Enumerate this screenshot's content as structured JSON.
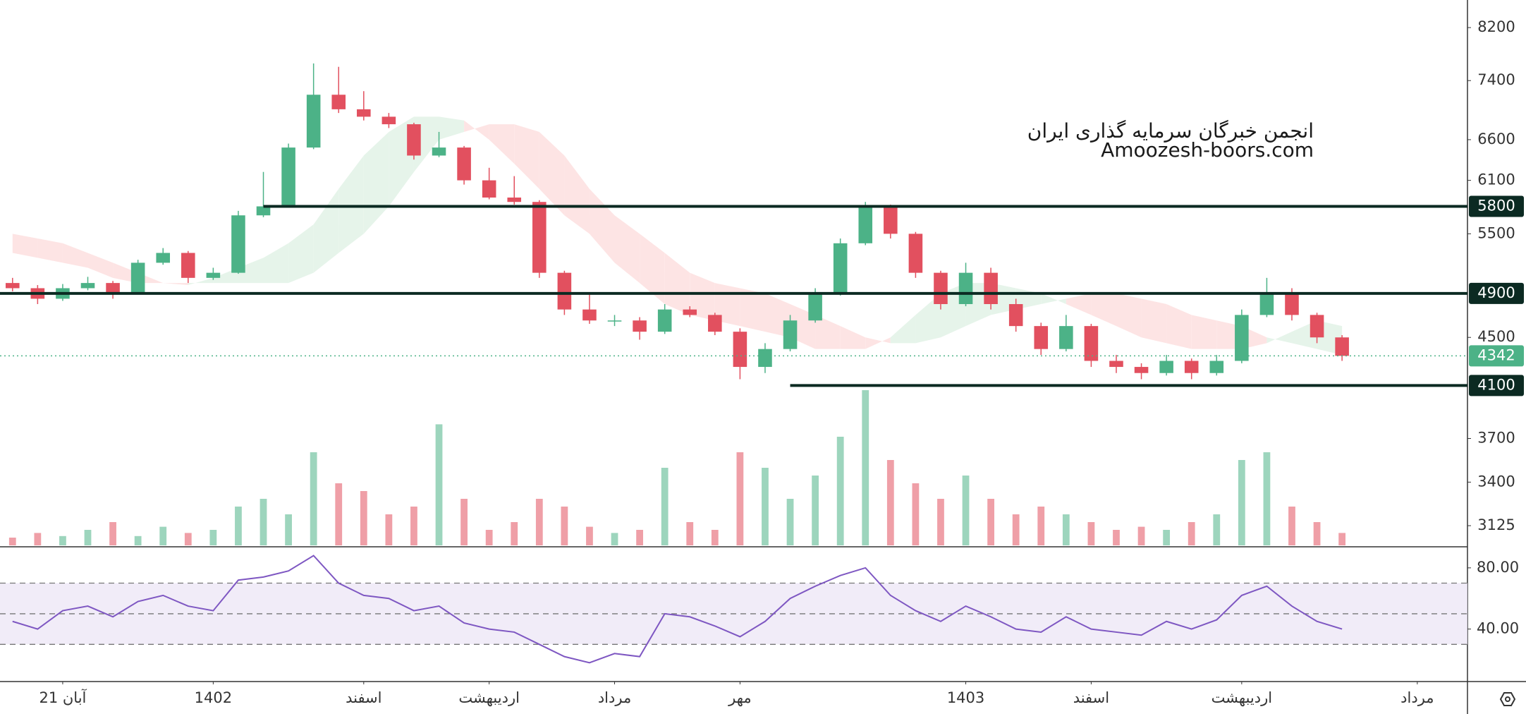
{
  "chart_data": {
    "type": "candlestick",
    "log_scale": true,
    "watermark": [
      "انجمن خبرگان سرمایه گذاری ایران",
      "Amoozesh-boors.com"
    ],
    "ylim": [
      3008,
      8650
    ],
    "yticks": [
      3125,
      3400,
      3700,
      4500,
      5500,
      6100,
      6600,
      7400,
      8200
    ],
    "xlim": [
      -0.5,
      58
    ],
    "xticks": [
      {
        "value": 2,
        "label": "21 آبان"
      },
      {
        "value": 8,
        "label": "1402"
      },
      {
        "value": 14,
        "label": "اسفند"
      },
      {
        "value": 19,
        "label": "اردیبهشت"
      },
      {
        "value": 24,
        "label": "مرداد"
      },
      {
        "value": 29,
        "label": "مهر"
      },
      {
        "value": 38,
        "label": "1403"
      },
      {
        "value": 43,
        "label": "اسفند"
      },
      {
        "value": 49,
        "label": "اردیبهشت"
      },
      {
        "value": 56,
        "label": "مرداد"
      }
    ],
    "up_color": "#4cb287",
    "down_color": "#e2505f",
    "open": [
      5000,
      4950,
      4850,
      4950,
      5000,
      4900,
      5200,
      5300,
      5050,
      5100,
      5700,
      5800,
      6500,
      7200,
      7000,
      6900,
      6800,
      6400,
      6500,
      6100,
      5900,
      5850,
      5100,
      4750,
      4650,
      4650,
      4550,
      4750,
      4700,
      4550,
      4250,
      4400,
      4650,
      4900,
      5400,
      5800,
      5500,
      5100,
      4800,
      5100,
      4800,
      4600,
      4400,
      4600,
      4300,
      4250,
      4200,
      4300,
      4200,
      4300,
      4700,
      4900,
      4700,
      4500
    ],
    "high": [
      5050,
      4980,
      4990,
      5060,
      5020,
      5230,
      5350,
      5320,
      5150,
      5750,
      6200,
      6550,
      7650,
      7600,
      7250,
      6950,
      6820,
      6700,
      6520,
      6250,
      6150,
      5870,
      5120,
      4900,
      4700,
      4680,
      4800,
      4780,
      4720,
      4580,
      4450,
      4700,
      4950,
      5450,
      5850,
      5820,
      5520,
      5120,
      5200,
      5150,
      4850,
      4630,
      4700,
      4620,
      4350,
      4280,
      4350,
      4320,
      4350,
      4750,
      5050,
      4950,
      4720,
      4520
    ],
    "low": [
      4920,
      4800,
      4830,
      4930,
      4850,
      4890,
      5180,
      5000,
      5030,
      5090,
      5680,
      5790,
      6480,
      6950,
      6850,
      6750,
      6350,
      6380,
      6050,
      5880,
      5820,
      5050,
      4700,
      4620,
      4600,
      4480,
      4530,
      4680,
      4520,
      4150,
      4200,
      4380,
      4630,
      4880,
      5380,
      5450,
      5050,
      4750,
      4780,
      4750,
      4550,
      4350,
      4380,
      4250,
      4200,
      4150,
      4180,
      4150,
      4180,
      4280,
      4680,
      4650,
      4450,
      4300
    ],
    "close": [
      4950,
      4850,
      4950,
      5000,
      4900,
      5200,
      5300,
      5050,
      5100,
      5700,
      5800,
      6500,
      7200,
      7000,
      6900,
      6800,
      6400,
      6500,
      6100,
      5900,
      5850,
      5100,
      4750,
      4650,
      4650,
      4550,
      4750,
      4700,
      4550,
      4250,
      4400,
      4650,
      4900,
      5400,
      5800,
      5500,
      5100,
      4800,
      5100,
      4800,
      4600,
      4400,
      4600,
      4300,
      4250,
      4200,
      4300,
      4200,
      4300,
      4700,
      4900,
      4700,
      4500,
      4342
    ],
    "volume": {
      "vlim": [
        0,
        100
      ],
      "values": [
        5,
        8,
        6,
        10,
        15,
        6,
        12,
        8,
        10,
        25,
        30,
        20,
        60,
        40,
        35,
        20,
        25,
        78,
        30,
        10,
        15,
        30,
        25,
        12,
        8,
        10,
        50,
        15,
        10,
        60,
        50,
        30,
        45,
        70,
        100,
        55,
        40,
        30,
        45,
        30,
        20,
        25,
        20,
        15,
        10,
        12,
        10,
        15,
        20,
        55,
        60,
        25,
        15,
        8
      ]
    },
    "cloud": {
      "up_color": "#e6f4ea",
      "down_color": "#fde4e4",
      "span_a": [
        5300,
        5250,
        5200,
        5150,
        5050,
        5000,
        5000,
        4980,
        5050,
        5150,
        5250,
        5400,
        5600,
        6000,
        6400,
        6700,
        6900,
        6900,
        6850,
        6600,
        6300,
        6000,
        5700,
        5500,
        5200,
        5000,
        4800,
        4700,
        4650,
        4600,
        4550,
        4500,
        4400,
        4400,
        4400,
        4500,
        4700,
        4900,
        5000,
        5000,
        4950,
        4900,
        4800,
        4700,
        4600,
        4500,
        4450,
        4400,
        4400,
        4400,
        4450,
        4550,
        4650,
        4600
      ],
      "span_b": [
        5500,
        5450,
        5400,
        5300,
        5200,
        5100,
        5000,
        5000,
        5000,
        5000,
        5000,
        5000,
        5100,
        5300,
        5500,
        5800,
        6200,
        6600,
        6700,
        6800,
        6800,
        6700,
        6400,
        6000,
        5700,
        5500,
        5300,
        5100,
        5000,
        4950,
        4900,
        4800,
        4700,
        4600,
        4500,
        4450,
        4450,
        4500,
        4600,
        4700,
        4750,
        4800,
        4850,
        4900,
        4900,
        4850,
        4800,
        4700,
        4650,
        4600,
        4500,
        4450,
        4400,
        4350
      ]
    },
    "levels": [
      {
        "value": 5800,
        "from": 10
      },
      {
        "value": 4900,
        "from": -0.5
      },
      {
        "value": 4100,
        "from": 31
      }
    ],
    "level_color": "#0b2a22",
    "last_price": 4342,
    "last_color": "#4cb287",
    "rsi": {
      "color": "#7e57c2",
      "band_color": "#ede7f6",
      "rlim": [
        5.7,
        93.3
      ],
      "ticks": [
        {
          "value": 80,
          "label": "80.00"
        },
        {
          "value": 40,
          "label": "40.00"
        }
      ],
      "levels": [
        70,
        50,
        30
      ],
      "values": [
        45,
        40,
        52,
        55,
        48,
        58,
        62,
        55,
        52,
        72,
        74,
        78,
        88,
        70,
        62,
        60,
        52,
        55,
        44,
        40,
        38,
        30,
        22,
        18,
        24,
        22,
        50,
        48,
        42,
        35,
        45,
        60,
        68,
        75,
        80,
        62,
        52,
        45,
        55,
        48,
        40,
        38,
        48,
        40,
        38,
        36,
        45,
        40,
        46,
        62,
        68,
        55,
        45,
        40
      ]
    }
  }
}
